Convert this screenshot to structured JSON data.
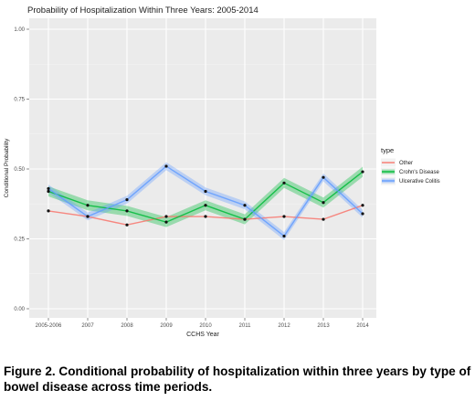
{
  "chart_data": {
    "type": "line",
    "title": "Probability of Hospitalization Within Three Years: 2005-2014",
    "xlabel": "CCHS Year",
    "ylabel": "Conditional Probability",
    "categories": [
      "2005-2006",
      "2007",
      "2008",
      "2009",
      "2010",
      "2011",
      "2012",
      "2013",
      "2014"
    ],
    "ylim": [
      0,
      1
    ],
    "yticks": [
      "0.00",
      "0.25",
      "0.50",
      "0.75",
      "1.00"
    ],
    "grid": true,
    "legend_title": "type",
    "legend_position": "right",
    "series": [
      {
        "name": "Other",
        "color": "#F8766D",
        "values": [
          0.35,
          0.33,
          0.3,
          0.33,
          0.33,
          0.32,
          0.33,
          0.32,
          0.37
        ]
      },
      {
        "name": "Crohn's Disease",
        "color": "#00BA38",
        "values": [
          0.42,
          0.37,
          0.35,
          0.31,
          0.37,
          0.32,
          0.45,
          0.38,
          0.49
        ]
      },
      {
        "name": "Ulcerative Colitis",
        "color": "#619CFF",
        "values": [
          0.43,
          0.33,
          0.39,
          0.51,
          0.42,
          0.37,
          0.26,
          0.47,
          0.34
        ]
      }
    ]
  },
  "caption": "Figure 2. Conditional probability of hospitalization within three years by type of bowel disease across time periods."
}
